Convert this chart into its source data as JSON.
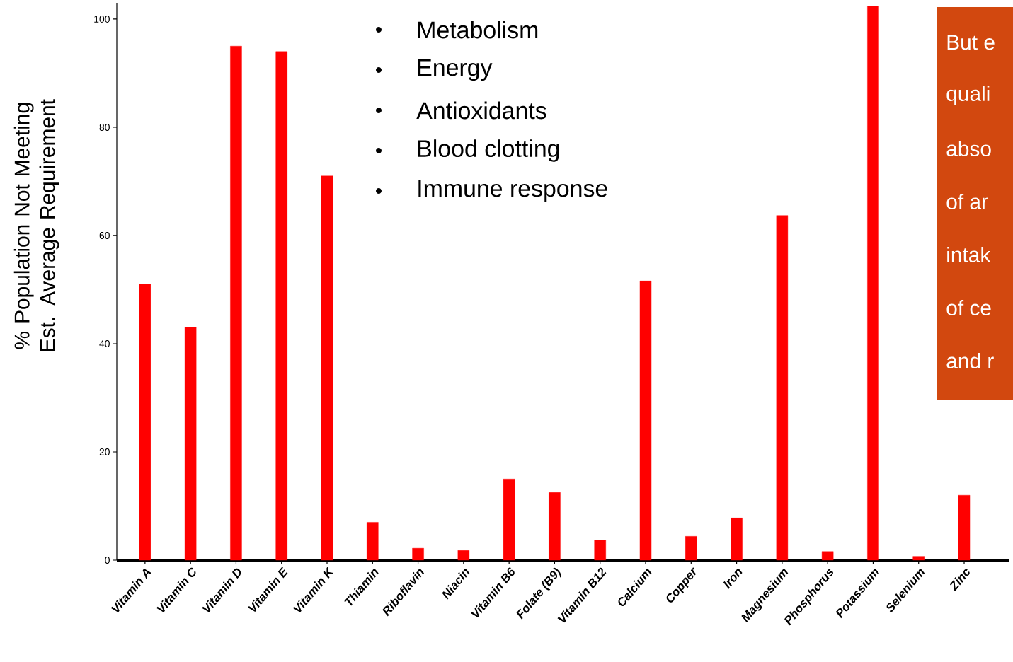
{
  "chart_data": {
    "type": "bar",
    "ylabel": "% Population Not Meeting Est. Average Requirement",
    "categories": [
      "Vitamin A",
      "Vitamin C",
      "Vitamin D",
      "Vitamin E",
      "Vitamin K",
      "Thiamin",
      "Riboflavin",
      "Niacin",
      "Vitamin B6",
      "Folate (B9)",
      "Vitamin B12",
      "Calcium",
      "Copper",
      "Iron",
      "Magnesium",
      "Phosphorus",
      "Potassium",
      "Selenium",
      "Zinc"
    ],
    "values": [
      51,
      43,
      95,
      94,
      71,
      7,
      2.2,
      1.8,
      15,
      12.5,
      3.7,
      51.6,
      4.4,
      7.8,
      63.7,
      1.6,
      102.4,
      0.7,
      12
    ],
    "color": "#ff0000",
    "ylim": [
      0,
      103
    ],
    "yticks": [
      0,
      20,
      40,
      60,
      80,
      100
    ],
    "annotations": [
      "Metabolism",
      "Energy",
      "Antioxidants",
      "Blood clotting",
      "Immune response",
      "But e",
      "quali",
      "abso",
      "of ar",
      "intak",
      "of ce",
      "and r"
    ]
  }
}
